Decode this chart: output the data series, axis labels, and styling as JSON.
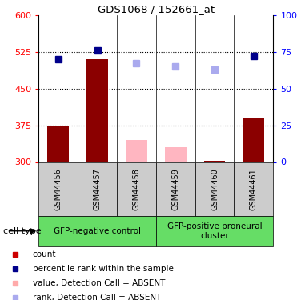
{
  "title": "GDS1068 / 152661_at",
  "samples": [
    "GSM44456",
    "GSM44457",
    "GSM44458",
    "GSM44459",
    "GSM44460",
    "GSM44461"
  ],
  "bar_values": [
    375,
    510,
    345,
    330,
    302,
    390
  ],
  "bar_colors": [
    "#8B0000",
    "#8B0000",
    "#FFB6C1",
    "#FFB6C1",
    "#8B0000",
    "#8B0000"
  ],
  "bar_present": [
    true,
    true,
    false,
    false,
    true,
    true
  ],
  "rank_values": [
    70,
    76,
    67,
    65,
    63,
    72
  ],
  "rank_present": [
    true,
    true,
    false,
    false,
    false,
    true
  ],
  "ylim_left": [
    300,
    600
  ],
  "ylim_right": [
    0,
    100
  ],
  "yticks_left": [
    300,
    375,
    450,
    525,
    600
  ],
  "yticks_right": [
    0,
    25,
    50,
    75,
    100
  ],
  "ytick_labels_right": [
    "0",
    "25",
    "50",
    "75",
    "100%"
  ],
  "group1_label": "GFP-negative control",
  "group2_label": "GFP-positive proneural\ncluster",
  "group1_samples": [
    0,
    1,
    2
  ],
  "group2_samples": [
    3,
    4,
    5
  ],
  "group_color": "#66DD66",
  "bar_width": 0.55,
  "dark_red": "#8B0000",
  "pink": "#FFB6C1",
  "dark_blue": "#00008B",
  "light_blue": "#AAAAEE",
  "sample_box_color": "#CCCCCC",
  "legend_items": [
    {
      "label": "count",
      "color": "#CC0000"
    },
    {
      "label": "percentile rank within the sample",
      "color": "#00008B"
    },
    {
      "label": "value, Detection Call = ABSENT",
      "color": "#FFAAAA"
    },
    {
      "label": "rank, Detection Call = ABSENT",
      "color": "#AAAAEE"
    }
  ]
}
